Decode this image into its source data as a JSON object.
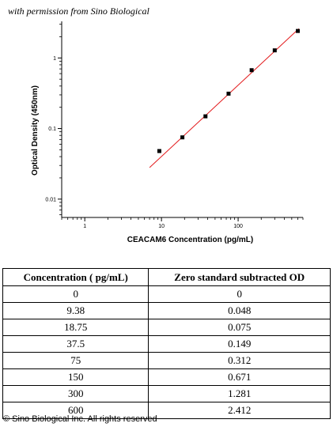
{
  "header": {
    "permission_text": "with permission from Sino Biological"
  },
  "chart_data": {
    "type": "scatter",
    "xlabel": "CEACAM6 Concentration (pg/mL)",
    "ylabel": "Optical Density (450nm)",
    "x_scale": "log",
    "y_scale": "log",
    "xlim": [
      0.5,
      700
    ],
    "ylim": [
      0.0055,
      3.3
    ],
    "x_ticks": [
      1,
      10,
      100
    ],
    "x_tick_labels": [
      "1",
      "10",
      "100"
    ],
    "y_ticks": [
      0.01,
      0.1,
      1
    ],
    "y_tick_labels": [
      "0.01",
      "0.1",
      "1"
    ],
    "points": [
      {
        "x": 9.38,
        "y": 0.048
      },
      {
        "x": 18.75,
        "y": 0.075
      },
      {
        "x": 37.5,
        "y": 0.149
      },
      {
        "x": 75,
        "y": 0.312
      },
      {
        "x": 150,
        "y": 0.671
      },
      {
        "x": 300,
        "y": 1.281
      },
      {
        "x": 600,
        "y": 2.412
      }
    ],
    "fit_line": {
      "x": [
        7,
        620
      ],
      "y": [
        0.028,
        2.6
      ],
      "color": "#e31a1c"
    },
    "point_color": "#000000",
    "grid": false
  },
  "table": {
    "headers": [
      "Concentration ( pg/mL)",
      "Zero standard subtracted OD"
    ],
    "rows": [
      [
        "0",
        "0"
      ],
      [
        "9.38",
        "0.048"
      ],
      [
        "18.75",
        "0.075"
      ],
      [
        "37.5",
        "0.149"
      ],
      [
        "75",
        "0.312"
      ],
      [
        "150",
        "0.671"
      ],
      [
        "300",
        "1.281"
      ],
      [
        "600",
        "2.412"
      ]
    ]
  },
  "footer": {
    "copyright": "© Sino Biological Inc. All rights reserved"
  }
}
